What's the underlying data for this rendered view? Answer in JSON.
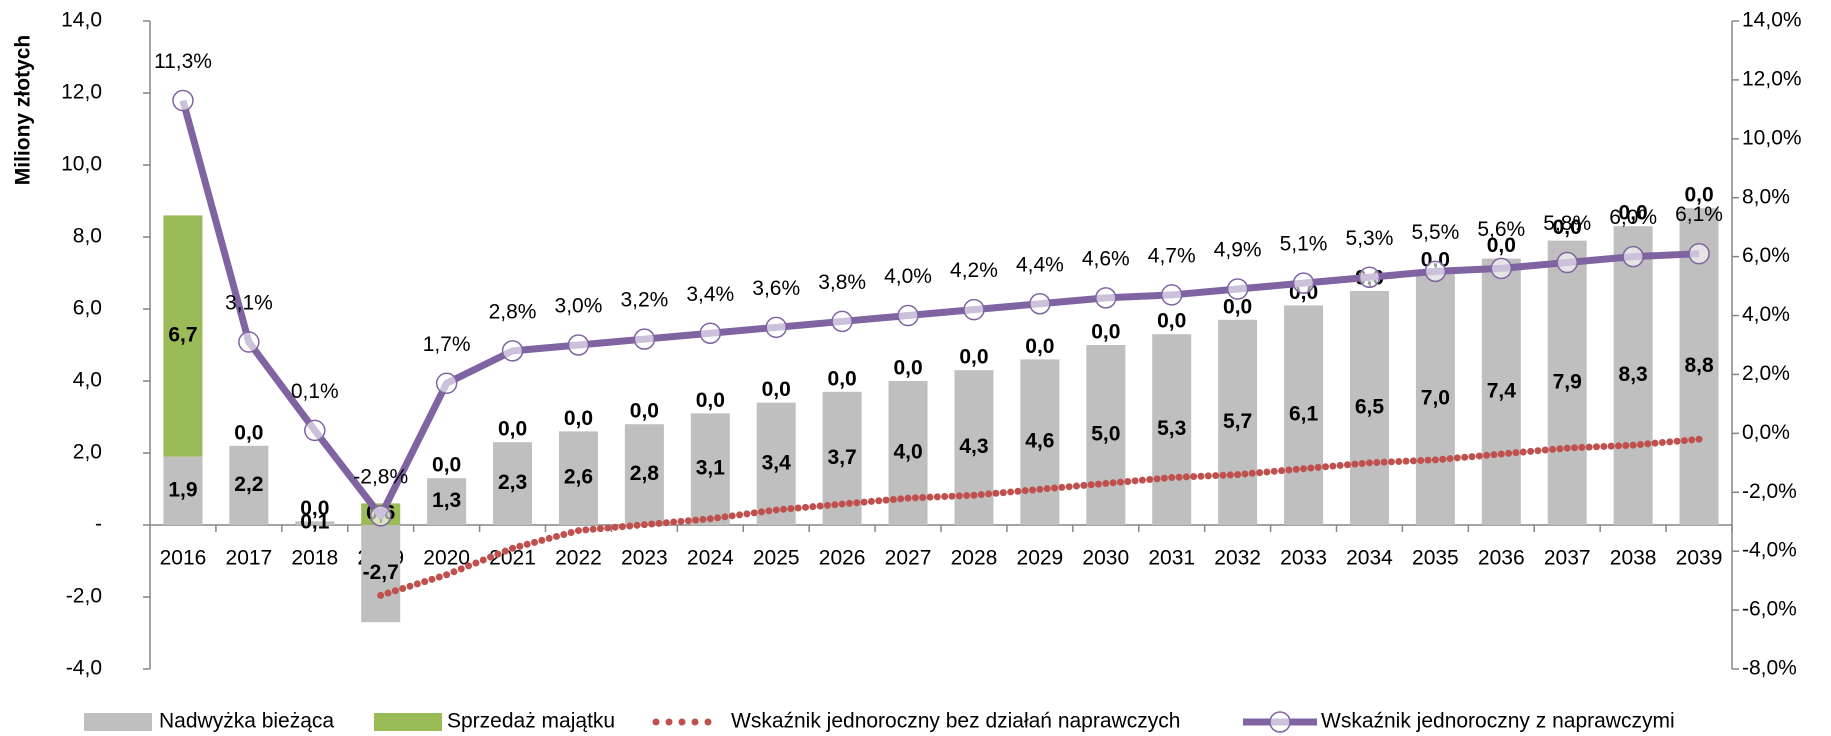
{
  "chart_data": {
    "type": "bar",
    "y_label": "Miliony złotych",
    "categories": [
      "2016",
      "2017",
      "2018",
      "2019",
      "2020",
      "2021",
      "2022",
      "2023",
      "2024",
      "2025",
      "2026",
      "2027",
      "2028",
      "2029",
      "2030",
      "2031",
      "2032",
      "2033",
      "2034",
      "2035",
      "2036",
      "2037",
      "2038",
      "2039"
    ],
    "ylim": [
      -4,
      14
    ],
    "yticks": [
      {
        "value": -4,
        "label": "-4,0"
      },
      {
        "value": -2,
        "label": "-2,0"
      },
      {
        "value": 0,
        "label": "-"
      },
      {
        "value": 2,
        "label": "2,0"
      },
      {
        "value": 4,
        "label": "4,0"
      },
      {
        "value": 6,
        "label": "6,0"
      },
      {
        "value": 8,
        "label": "8,0"
      },
      {
        "value": 10,
        "label": "10,0"
      },
      {
        "value": 12,
        "label": "12,0"
      },
      {
        "value": 14,
        "label": "14,0"
      }
    ],
    "y2lim": [
      -8,
      14
    ],
    "y2ticks": [
      {
        "value": -8,
        "label": "-8,0%"
      },
      {
        "value": -6,
        "label": "-6,0%"
      },
      {
        "value": -4,
        "label": "-4,0%"
      },
      {
        "value": -2,
        "label": "-2,0%"
      },
      {
        "value": 0,
        "label": "0,0%"
      },
      {
        "value": 2,
        "label": "2,0%"
      },
      {
        "value": 4,
        "label": "4,0%"
      },
      {
        "value": 6,
        "label": "6,0%"
      },
      {
        "value": 8,
        "label": "8,0%"
      },
      {
        "value": 10,
        "label": "10,0%"
      },
      {
        "value": 12,
        "label": "12,0%"
      },
      {
        "value": 14,
        "label": "14,0%"
      }
    ],
    "series": [
      {
        "name": "Nadwyżka bieżąca",
        "type": "bar",
        "color": "#bfbfbf",
        "values": [
          1.9,
          2.2,
          0.1,
          -2.7,
          1.3,
          2.3,
          2.6,
          2.8,
          3.1,
          3.4,
          3.7,
          4.0,
          4.3,
          4.6,
          5.0,
          5.3,
          5.7,
          6.1,
          6.5,
          7.0,
          7.4,
          7.9,
          8.3,
          8.8
        ],
        "value_labels": [
          "1,9",
          "2,2",
          "0,1",
          "-2,7",
          "1,3",
          "2,3",
          "2,6",
          "2,8",
          "3,1",
          "3,4",
          "3,7",
          "4,0",
          "4,3",
          "4,6",
          "5,0",
          "5,3",
          "5,7",
          "6,1",
          "6,5",
          "7,0",
          "7,4",
          "7,9",
          "8,3",
          "8,8"
        ]
      },
      {
        "name": "Sprzedaż majątku",
        "type": "bar",
        "color": "#9bbb59",
        "values": [
          6.7,
          0,
          0,
          0.6,
          0,
          0,
          0,
          0,
          0,
          0,
          0,
          0,
          0,
          0,
          0,
          0,
          0,
          0,
          0,
          0,
          0,
          0,
          0,
          0
        ],
        "value_labels": [
          "6,7",
          "0,0",
          "0,0",
          "0,6",
          "0,0",
          "0,0",
          "0,0",
          "0,0",
          "0,0",
          "0,0",
          "0,0",
          "0,0",
          "0,0",
          "0,0",
          "0,0",
          "0,0",
          "0,0",
          "0,0",
          "0,0",
          "0,0",
          "0,0",
          "0,0",
          "0,0",
          "0,0"
        ]
      },
      {
        "name": "Wskaźnik jednoroczny bez działań naprawczych",
        "type": "dotted",
        "axis": "y2",
        "color": "#c0504d",
        "values": [
          null,
          null,
          null,
          -5.5,
          -4.8,
          -3.9,
          -3.3,
          -3.1,
          -2.9,
          -2.6,
          -2.4,
          -2.2,
          -2.1,
          -1.9,
          -1.7,
          -1.5,
          -1.4,
          -1.2,
          -1.0,
          -0.9,
          -0.7,
          -0.5,
          -0.4,
          -0.2
        ]
      },
      {
        "name": "Wskaźnik jednoroczny z naprawczymi",
        "type": "line",
        "axis": "y2",
        "color": "#8064a2",
        "values": [
          11.3,
          3.1,
          0.1,
          -2.8,
          1.7,
          2.8,
          3.0,
          3.2,
          3.4,
          3.6,
          3.8,
          4.0,
          4.2,
          4.4,
          4.6,
          4.7,
          4.9,
          5.1,
          5.3,
          5.5,
          5.6,
          5.8,
          6.0,
          6.1
        ],
        "value_labels": [
          "11,3%",
          "3,1%",
          "0,1%",
          "-2,8%",
          "1,7%",
          "2,8%",
          "3,0%",
          "3,2%",
          "3,4%",
          "3,6%",
          "3,8%",
          "4,0%",
          "4,2%",
          "4,4%",
          "4,6%",
          "4,7%",
          "4,9%",
          "5,1%",
          "5,3%",
          "5,5%",
          "5,6%",
          "5,8%",
          "6,0%",
          "6,1%"
        ]
      }
    ]
  }
}
